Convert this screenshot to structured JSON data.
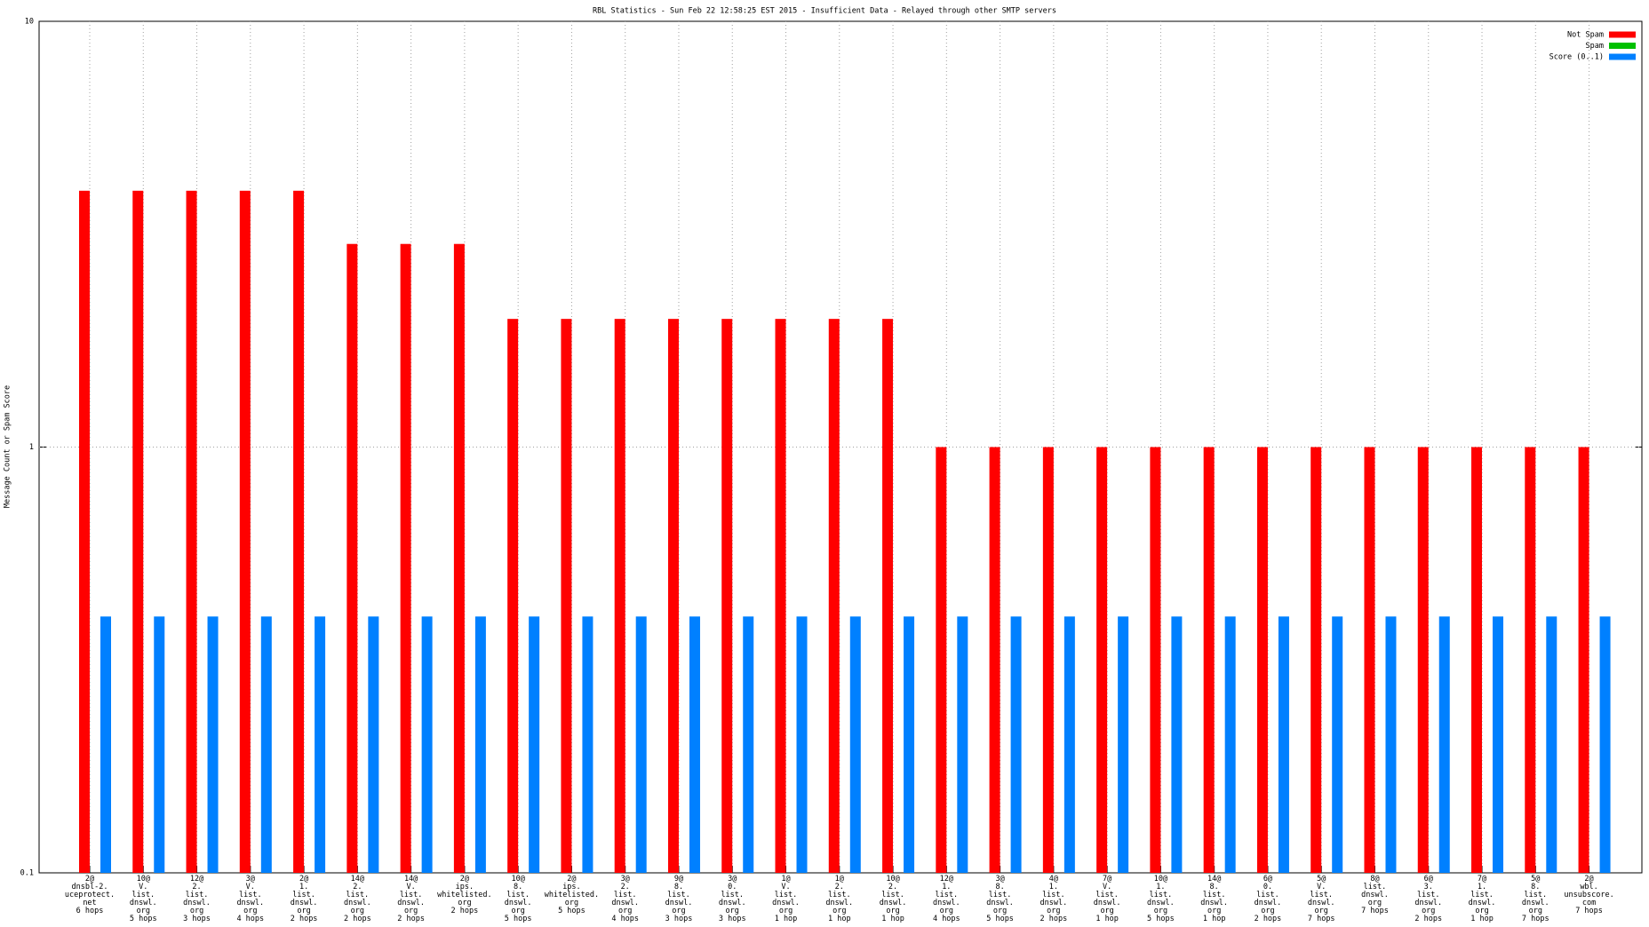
{
  "chart_data": {
    "type": "bar",
    "title": "RBL Statistics - Sun Feb 22 12:58:25 EST 2015 - Insufficient Data - Relayed through other SMTP servers",
    "y_label": "Message Count or Spam Score",
    "log_scale": "y",
    "grid": true,
    "legend": "top right",
    "ylim": [
      0.1,
      10
    ],
    "yticks": [
      0.1,
      1,
      10
    ],
    "categories": [
      "2@\ndnsbl-2.\nuceprotect.\nnet\n6 hops",
      "10@\nV.\nlist.\ndnswl.\norg\n5 hops",
      "12@\n2.\nlist.\ndnswl.\norg\n3 hops",
      "3@\nV.\nlist.\ndnswl.\norg\n4 hops",
      "2@\n1.\nlist.\ndnswl.\norg\n2 hops",
      "14@\n2.\nlist.\ndnswl.\norg\n2 hops",
      "14@\nV.\nlist.\ndnswl.\norg\n2 hops",
      "2@\nips.\nwhitelisted.\norg\n2 hops",
      "10@\n8.\nlist.\ndnswl.\norg\n5 hops",
      "2@\nips.\nwhitelisted.\norg\n5 hops",
      "3@\n2.\nlist.\ndnswl.\norg\n4 hops",
      "9@\n8.\nlist.\ndnswl.\norg\n3 hops",
      "3@\n0.\nlist.\ndnswl.\norg\n3 hops",
      "1@\nV.\nlist.\ndnswl.\norg\n1 hop",
      "1@\n2.\nlist.\ndnswl.\norg\n1 hop",
      "10@\n2.\nlist.\ndnswl.\norg\n1 hop",
      "12@\n1.\nlist.\ndnswl.\norg\n4 hops",
      "3@\n8.\nlist.\ndnswl.\norg\n5 hops",
      "4@\n1.\nlist.\ndnswl.\norg\n2 hops",
      "7@\nV.\nlist.\ndnswl.\norg\n1 hop",
      "10@\n1.\nlist.\ndnswl.\norg\n5 hops",
      "14@\n8.\nlist.\ndnswl.\norg\n1 hop",
      "6@\n0.\nlist.\ndnswl.\norg\n2 hops",
      "5@\nV.\nlist.\ndnswl.\norg\n7 hops",
      "8@\nlist.\ndnswl.\norg\n7 hops",
      "6@\n3.\nlist.\ndnswl.\norg\n2 hops",
      "7@\n1.\nlist.\ndnswl.\norg\n1 hop",
      "5@\n8.\nlist.\ndnswl.\norg\n7 hops",
      "2@\nwbl.\nunsubscore.\ncom\n7 hops"
    ],
    "series": [
      {
        "name": "Not Spam",
        "color": "#ff0000",
        "values": [
          4,
          4,
          4,
          4,
          4,
          3,
          3,
          3,
          2,
          2,
          2,
          2,
          2,
          2,
          2,
          2,
          1,
          1,
          1,
          1,
          1,
          1,
          1,
          1,
          1,
          1,
          1,
          1,
          1
        ]
      },
      {
        "name": "Spam",
        "color": "#00c000",
        "values": [
          null,
          null,
          null,
          null,
          null,
          null,
          null,
          null,
          null,
          null,
          null,
          null,
          null,
          null,
          null,
          null,
          null,
          null,
          null,
          null,
          null,
          null,
          null,
          null,
          null,
          null,
          null,
          null,
          null
        ]
      },
      {
        "name": "Score (0..1)",
        "color": "#0080ff",
        "values": [
          0.4,
          0.4,
          0.4,
          0.4,
          0.4,
          0.4,
          0.4,
          0.4,
          0.4,
          0.4,
          0.4,
          0.4,
          0.4,
          0.4,
          0.4,
          0.4,
          0.4,
          0.4,
          0.4,
          0.4,
          0.4,
          0.4,
          0.4,
          0.4,
          0.4,
          0.4,
          0.4,
          0.4,
          0.4
        ]
      }
    ]
  }
}
